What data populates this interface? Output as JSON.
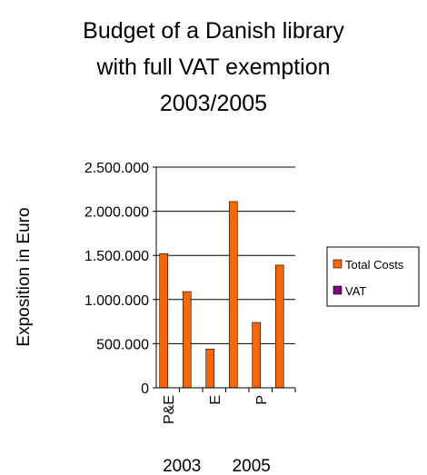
{
  "chart_data": {
    "type": "bar",
    "title": [
      "Budget of a Danish library",
      "with full VAT exemption",
      "2003/2005"
    ],
    "y_label": "Exposition in Euro",
    "categories": [
      "P&E",
      null,
      "E",
      null,
      "P",
      null
    ],
    "groups": [
      "2003",
      "2005"
    ],
    "series": [
      {
        "name": "Total Costs",
        "color": "#ff6600",
        "values": [
          1520000,
          1090000,
          440000,
          2110000,
          740000,
          1390000
        ]
      },
      {
        "name": "VAT",
        "color": "#800080",
        "values": [
          0,
          0,
          0,
          0,
          0,
          0
        ]
      }
    ],
    "ylim": [
      0,
      2500000
    ],
    "yticks": [
      0,
      {
        "value": 500000,
        "label": "500.000"
      },
      {
        "value": 1000000,
        "label": "1.000.000"
      },
      {
        "value": 1500000,
        "label": "1.500.000"
      },
      {
        "value": 2000000,
        "label": "2.000.000"
      },
      {
        "value": 2500000,
        "label": "2.500.000"
      }
    ],
    "grid": true,
    "legend": "right"
  }
}
